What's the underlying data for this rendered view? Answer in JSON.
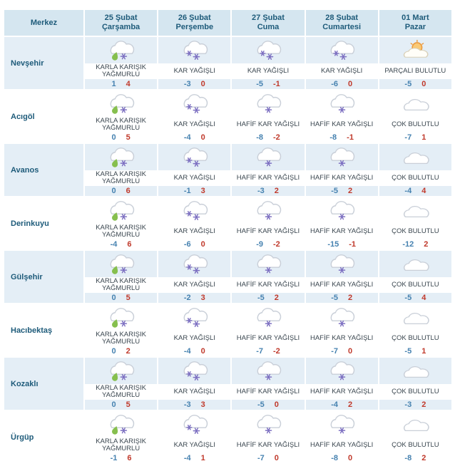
{
  "colors": {
    "header_bg": "#d5e6f0",
    "stripe_bg": "#e4eef6",
    "header_text": "#1e5b7a",
    "condition_text": "#3a464f",
    "min_temp": "#4682b0",
    "max_temp": "#c0392b",
    "flake": "#7c6fc1",
    "drop": "#86bf4e",
    "cloud_stroke": "#c9cfd8",
    "sun_fill": "#f9c976",
    "sun_stroke": "#ec9b3e",
    "front_cloud_stroke": "#d9d0b8"
  },
  "table": {
    "corner_label": "Merkez",
    "columns": [
      {
        "date": "25 Şubat",
        "day": "Çarşamba"
      },
      {
        "date": "26 Şubat",
        "day": "Perşembe"
      },
      {
        "date": "27 Şubat",
        "day": "Cuma"
      },
      {
        "date": "28 Şubat",
        "day": "Cumartesi"
      },
      {
        "date": "01 Mart",
        "day": "Pazar"
      }
    ],
    "rows": [
      {
        "town": "Nevşehir",
        "cells": [
          {
            "condition": "KARLA KARIŞIK YAĞMURLU",
            "icon": "sleet",
            "min": 1,
            "max": 4
          },
          {
            "condition": "KAR YAĞIŞLI",
            "icon": "snow",
            "min": -3,
            "max": 0
          },
          {
            "condition": "KAR YAĞIŞLI",
            "icon": "snow",
            "min": -5,
            "max": -1
          },
          {
            "condition": "KAR YAĞIŞLI",
            "icon": "snow",
            "min": -6,
            "max": 0
          },
          {
            "condition": "PARÇALI BULUTLU",
            "icon": "partly-cloudy",
            "min": -5,
            "max": 0
          }
        ]
      },
      {
        "town": "Acıgöl",
        "cells": [
          {
            "condition": "KARLA KARIŞIK YAĞMURLU",
            "icon": "sleet",
            "min": 0,
            "max": 5
          },
          {
            "condition": "KAR YAĞIŞLI",
            "icon": "snow",
            "min": -4,
            "max": 0
          },
          {
            "condition": "HAFİF KAR YAĞIŞLI",
            "icon": "light-snow",
            "min": -8,
            "max": -2
          },
          {
            "condition": "HAFİF KAR YAĞIŞLI",
            "icon": "light-snow",
            "min": -8,
            "max": -1
          },
          {
            "condition": "ÇOK BULUTLU",
            "icon": "cloudy",
            "min": -7,
            "max": 1
          }
        ]
      },
      {
        "town": "Avanos",
        "cells": [
          {
            "condition": "KARLA KARIŞIK YAĞMURLU",
            "icon": "sleet",
            "min": 0,
            "max": 6
          },
          {
            "condition": "KAR YAĞIŞLI",
            "icon": "snow",
            "min": -1,
            "max": 3
          },
          {
            "condition": "HAFİF KAR YAĞIŞLI",
            "icon": "light-snow",
            "min": -3,
            "max": 2
          },
          {
            "condition": "HAFİF KAR YAĞIŞLI",
            "icon": "light-snow",
            "min": -5,
            "max": 2
          },
          {
            "condition": "ÇOK BULUTLU",
            "icon": "cloudy",
            "min": -4,
            "max": 4
          }
        ]
      },
      {
        "town": "Derinkuyu",
        "cells": [
          {
            "condition": "KARLA KARIŞIK YAĞMURLU",
            "icon": "sleet",
            "min": -4,
            "max": 6
          },
          {
            "condition": "KAR YAĞIŞLI",
            "icon": "snow",
            "min": -6,
            "max": 0
          },
          {
            "condition": "HAFİF KAR YAĞIŞLI",
            "icon": "light-snow",
            "min": -9,
            "max": -2
          },
          {
            "condition": "HAFİF KAR YAĞIŞLI",
            "icon": "light-snow",
            "min": -15,
            "max": -1
          },
          {
            "condition": "ÇOK BULUTLU",
            "icon": "cloudy",
            "min": -12,
            "max": 2
          }
        ]
      },
      {
        "town": "Gülşehir",
        "cells": [
          {
            "condition": "KARLA KARIŞIK YAĞMURLU",
            "icon": "sleet",
            "min": 0,
            "max": 5
          },
          {
            "condition": "KAR YAĞIŞLI",
            "icon": "snow",
            "min": -2,
            "max": 3
          },
          {
            "condition": "HAFİF KAR YAĞIŞLI",
            "icon": "light-snow",
            "min": -5,
            "max": 2
          },
          {
            "condition": "HAFİF KAR YAĞIŞLI",
            "icon": "light-snow",
            "min": -5,
            "max": 2
          },
          {
            "condition": "ÇOK BULUTLU",
            "icon": "cloudy",
            "min": -5,
            "max": 4
          }
        ]
      },
      {
        "town": "Hacıbektaş",
        "cells": [
          {
            "condition": "KARLA KARIŞIK YAĞMURLU",
            "icon": "sleet",
            "min": 0,
            "max": 2
          },
          {
            "condition": "KAR YAĞIŞLI",
            "icon": "snow",
            "min": -4,
            "max": 0
          },
          {
            "condition": "HAFİF KAR YAĞIŞLI",
            "icon": "light-snow",
            "min": -7,
            "max": -2
          },
          {
            "condition": "HAFİF KAR YAĞIŞLI",
            "icon": "light-snow",
            "min": -7,
            "max": 0
          },
          {
            "condition": "ÇOK BULUTLU",
            "icon": "cloudy",
            "min": -5,
            "max": 1
          }
        ]
      },
      {
        "town": "Kozaklı",
        "cells": [
          {
            "condition": "KARLA KARIŞIK YAĞMURLU",
            "icon": "sleet",
            "min": 0,
            "max": 5
          },
          {
            "condition": "KAR YAĞIŞLI",
            "icon": "snow",
            "min": -3,
            "max": 3
          },
          {
            "condition": "HAFİF KAR YAĞIŞLI",
            "icon": "light-snow",
            "min": -5,
            "max": 0
          },
          {
            "condition": "HAFİF KAR YAĞIŞLI",
            "icon": "light-snow",
            "min": -4,
            "max": 2
          },
          {
            "condition": "ÇOK BULUTLU",
            "icon": "cloudy",
            "min": -3,
            "max": 2
          }
        ]
      },
      {
        "town": "Ürgüp",
        "cells": [
          {
            "condition": "KARLA KARIŞIK YAĞMURLU",
            "icon": "sleet",
            "min": -1,
            "max": 6
          },
          {
            "condition": "KAR YAĞIŞLI",
            "icon": "snow",
            "min": -4,
            "max": 1
          },
          {
            "condition": "HAFİF KAR YAĞIŞLI",
            "icon": "light-snow",
            "min": -7,
            "max": 0
          },
          {
            "condition": "HAFİF KAR YAĞIŞLI",
            "icon": "light-snow",
            "min": -8,
            "max": 0
          },
          {
            "condition": "ÇOK BULUTLU",
            "icon": "cloudy",
            "min": -8,
            "max": 2
          }
        ]
      }
    ]
  }
}
